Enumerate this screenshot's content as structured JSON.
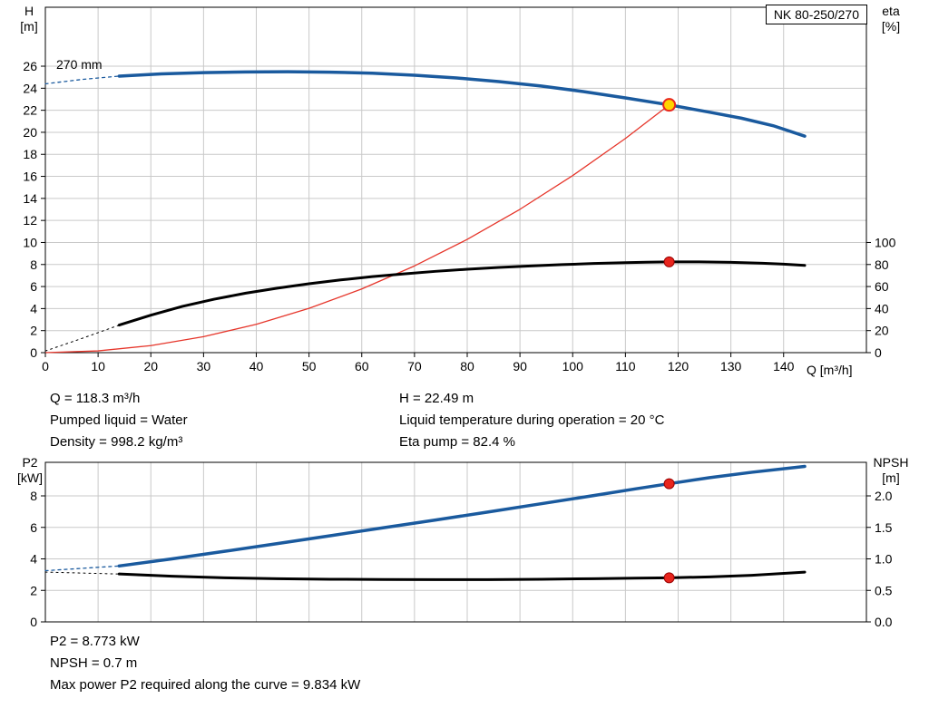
{
  "pump_type": "NK 80-250/270",
  "labels": {
    "h_axis": [
      "H",
      "[m]"
    ],
    "eta_axis": [
      "eta",
      "[%]"
    ],
    "p2_axis": [
      "P2",
      "[kW]"
    ],
    "npsh_axis": [
      "NPSH",
      "[m]"
    ],
    "q_axis": "Q [m³/h]",
    "impeller": "270 mm"
  },
  "operating_point_info": {
    "left": [
      "Q = 118.3 m³/h",
      "Pumped liquid = Water",
      "Density = 998.2 kg/m³"
    ],
    "right": [
      "H = 22.49 m",
      "Liquid temperature during operation = 20 °C",
      "Eta pump = 82.4 %"
    ]
  },
  "power_info": [
    "P2 = 8.773 kW",
    "NPSH = 0.7 m",
    "Max power P2 required along the curve = 9.834 kW"
  ],
  "chart_data": [
    {
      "type": "line",
      "title": "NK 80-250/270",
      "xlabel": "Q [m³/h]",
      "ylabel": "H [m]",
      "y2label": "eta [%]",
      "xlim": [
        0,
        155.7
      ],
      "ylim": [
        0,
        31.35
      ],
      "y2lim": [
        0,
        100
      ],
      "y2_maps_to_y": [
        0,
        10
      ],
      "grid": true,
      "show_x_labels": true,
      "x_ticks": [
        {
          "v": 0,
          "label": "0"
        },
        {
          "v": 10,
          "label": "10"
        },
        {
          "v": 20,
          "label": "20"
        },
        {
          "v": 30,
          "label": "30"
        },
        {
          "v": 40,
          "label": "40"
        },
        {
          "v": 50,
          "label": "50"
        },
        {
          "v": 60,
          "label": "60"
        },
        {
          "v": 70,
          "label": "70"
        },
        {
          "v": 80,
          "label": "80"
        },
        {
          "v": 90,
          "label": "90"
        },
        {
          "v": 100,
          "label": "100"
        },
        {
          "v": 110,
          "label": "110"
        },
        {
          "v": 120,
          "label": "120"
        },
        {
          "v": 130,
          "label": "130"
        },
        {
          "v": 140,
          "label": "140"
        }
      ],
      "y_ticks": [
        {
          "v": 0,
          "label": "0"
        },
        {
          "v": 2,
          "label": "2"
        },
        {
          "v": 4,
          "label": "4"
        },
        {
          "v": 6,
          "label": "6"
        },
        {
          "v": 8,
          "label": "8"
        },
        {
          "v": 10,
          "label": "10"
        },
        {
          "v": 12,
          "label": "12"
        },
        {
          "v": 14,
          "label": "14"
        },
        {
          "v": 16,
          "label": "16"
        },
        {
          "v": 18,
          "label": "18"
        },
        {
          "v": 20,
          "label": "20"
        },
        {
          "v": 22,
          "label": "22"
        },
        {
          "v": 24,
          "label": "24"
        },
        {
          "v": 26,
          "label": "26"
        }
      ],
      "y2_ticks": [
        {
          "v": 0,
          "label": "0"
        },
        {
          "v": 20,
          "label": "20"
        },
        {
          "v": 40,
          "label": "40"
        },
        {
          "v": 60,
          "label": "60"
        },
        {
          "v": 80,
          "label": "80"
        },
        {
          "v": 100,
          "label": "100"
        }
      ],
      "series": [
        {
          "name": "head-curve-ext",
          "axis": "y",
          "color": "#1a5a9e",
          "width": 1.3,
          "dash": "3 4",
          "points": [
            [
              0,
              24.4
            ],
            [
              7,
              24.8
            ],
            [
              14,
              25.1
            ]
          ]
        },
        {
          "name": "eta-curve-ext",
          "axis": "y2",
          "color": "#000000",
          "width": 1,
          "dash": "2 4",
          "points": [
            [
              0,
              1.5
            ],
            [
              7,
              13
            ],
            [
              14,
              25
            ]
          ]
        },
        {
          "name": "system-curve",
          "axis": "y",
          "color": "#e6362b",
          "width": 1.3,
          "dash": null,
          "points": [
            [
              0,
              0
            ],
            [
              10,
              0.16
            ],
            [
              20,
              0.64
            ],
            [
              30,
              1.45
            ],
            [
              40,
              2.57
            ],
            [
              50,
              4.02
            ],
            [
              60,
              5.78
            ],
            [
              70,
              7.87
            ],
            [
              80,
              10.28
            ],
            [
              90,
              13.01
            ],
            [
              100,
              16.07
            ],
            [
              110,
              19.44
            ],
            [
              118.3,
              22.49
            ]
          ]
        },
        {
          "name": "eta-curve",
          "axis": "y2",
          "color": "#000000",
          "width": 3,
          "dash": null,
          "points": [
            [
              14,
              25
            ],
            [
              20,
              34
            ],
            [
              26,
              42
            ],
            [
              32,
              48.5
            ],
            [
              38,
              54
            ],
            [
              44,
              58.5
            ],
            [
              50,
              62.5
            ],
            [
              56,
              66
            ],
            [
              62,
              69
            ],
            [
              68,
              71.5
            ],
            [
              74,
              73.8
            ],
            [
              80,
              75.7
            ],
            [
              86,
              77.3
            ],
            [
              92,
              78.7
            ],
            [
              98,
              79.9
            ],
            [
              104,
              80.9
            ],
            [
              110,
              81.7
            ],
            [
              114,
              82.1
            ],
            [
              118.3,
              82.4
            ],
            [
              124,
              82.4
            ],
            [
              130,
              82.0
            ],
            [
              136,
              81.2
            ],
            [
              140,
              80.3
            ],
            [
              144,
              79.2
            ]
          ]
        },
        {
          "name": "head-curve",
          "axis": "y",
          "color": "#1a5a9e",
          "width": 3.5,
          "dash": null,
          "points": [
            [
              14,
              25.1
            ],
            [
              22,
              25.3
            ],
            [
              30,
              25.42
            ],
            [
              38,
              25.48
            ],
            [
              46,
              25.5
            ],
            [
              54,
              25.46
            ],
            [
              62,
              25.36
            ],
            [
              70,
              25.18
            ],
            [
              78,
              24.93
            ],
            [
              86,
              24.6
            ],
            [
              94,
              24.2
            ],
            [
              102,
              23.7
            ],
            [
              110,
              23.12
            ],
            [
              118.3,
              22.49
            ],
            [
              126,
              21.82
            ],
            [
              132,
              21.28
            ],
            [
              138,
              20.6
            ],
            [
              144,
              19.65
            ]
          ]
        }
      ],
      "markers": [
        {
          "name": "duty-point",
          "axis": "y",
          "x": 118.3,
          "y": 22.49,
          "r": 6.5,
          "fill": "#ffd400",
          "stroke": "#e8251d",
          "stroke_width": 2
        },
        {
          "name": "eta-point",
          "axis": "y2",
          "x": 118.3,
          "y": 82.4,
          "r": 5.5,
          "fill": "#e8251d",
          "stroke": "#990000",
          "stroke_width": 1
        }
      ]
    },
    {
      "type": "line",
      "title": "P2 / NPSH",
      "xlabel": "Q [m³/h]",
      "ylabel": "P2 [kW]",
      "y2label": "NPSH [m]",
      "xlim": [
        0,
        155.7
      ],
      "ylim": [
        0,
        10.13
      ],
      "y2lim": [
        0,
        2.5
      ],
      "y2_maps_to_y": [
        0,
        10
      ],
      "grid": true,
      "show_x_labels": false,
      "x_ticks": [
        {
          "v": 0
        },
        {
          "v": 10
        },
        {
          "v": 20
        },
        {
          "v": 30
        },
        {
          "v": 40
        },
        {
          "v": 50
        },
        {
          "v": 60
        },
        {
          "v": 70
        },
        {
          "v": 80
        },
        {
          "v": 90
        },
        {
          "v": 100
        },
        {
          "v": 110
        },
        {
          "v": 120
        },
        {
          "v": 130
        },
        {
          "v": 140
        }
      ],
      "y_ticks": [
        {
          "v": 0,
          "label": "0"
        },
        {
          "v": 2,
          "label": "2"
        },
        {
          "v": 4,
          "label": "4"
        },
        {
          "v": 6,
          "label": "6"
        },
        {
          "v": 8,
          "label": "8"
        }
      ],
      "y2_ticks": [
        {
          "v": 0,
          "label": "0.0"
        },
        {
          "v": 0.5,
          "label": "0.5"
        },
        {
          "v": 1,
          "label": "1.0"
        },
        {
          "v": 1.5,
          "label": "1.5"
        },
        {
          "v": 2,
          "label": "2.0"
        }
      ],
      "series": [
        {
          "name": "p2-curve-ext",
          "axis": "y",
          "color": "#1a5a9e",
          "width": 1.3,
          "dash": "3 4",
          "points": [
            [
              0,
              3.25
            ],
            [
              7,
              3.4
            ],
            [
              14,
              3.55
            ]
          ]
        },
        {
          "name": "npsh-curve-ext",
          "axis": "y2",
          "color": "#000000",
          "width": 1,
          "dash": "2 4",
          "points": [
            [
              0,
              0.79
            ],
            [
              14,
              0.76
            ]
          ]
        },
        {
          "name": "npsh-curve",
          "axis": "y2",
          "color": "#000000",
          "width": 3,
          "dash": null,
          "points": [
            [
              14,
              0.76
            ],
            [
              24,
              0.725
            ],
            [
              34,
              0.7
            ],
            [
              44,
              0.685
            ],
            [
              54,
              0.677
            ],
            [
              64,
              0.672
            ],
            [
              74,
              0.67
            ],
            [
              84,
              0.671
            ],
            [
              94,
              0.676
            ],
            [
              104,
              0.686
            ],
            [
              112,
              0.694
            ],
            [
              118.3,
              0.7
            ],
            [
              126,
              0.714
            ],
            [
              134,
              0.74
            ],
            [
              144,
              0.79
            ]
          ]
        },
        {
          "name": "p2-curve",
          "axis": "y",
          "color": "#1a5a9e",
          "width": 3.5,
          "dash": null,
          "points": [
            [
              14,
              3.55
            ],
            [
              24,
              4.0
            ],
            [
              34,
              4.48
            ],
            [
              44,
              4.97
            ],
            [
              54,
              5.47
            ],
            [
              64,
              5.97
            ],
            [
              74,
              6.47
            ],
            [
              84,
              6.98
            ],
            [
              94,
              7.5
            ],
            [
              104,
              8.02
            ],
            [
              112,
              8.45
            ],
            [
              118.3,
              8.773
            ],
            [
              126,
              9.16
            ],
            [
              134,
              9.5
            ],
            [
              144,
              9.87
            ]
          ]
        }
      ],
      "markers": [
        {
          "name": "p2-point",
          "axis": "y",
          "x": 118.3,
          "y": 8.773,
          "r": 5.5,
          "fill": "#e8251d",
          "stroke": "#990000",
          "stroke_width": 1
        },
        {
          "name": "npsh-point",
          "axis": "y2",
          "x": 118.3,
          "y": 0.7,
          "r": 5.5,
          "fill": "#e8251d",
          "stroke": "#990000",
          "stroke_width": 1
        }
      ]
    }
  ]
}
